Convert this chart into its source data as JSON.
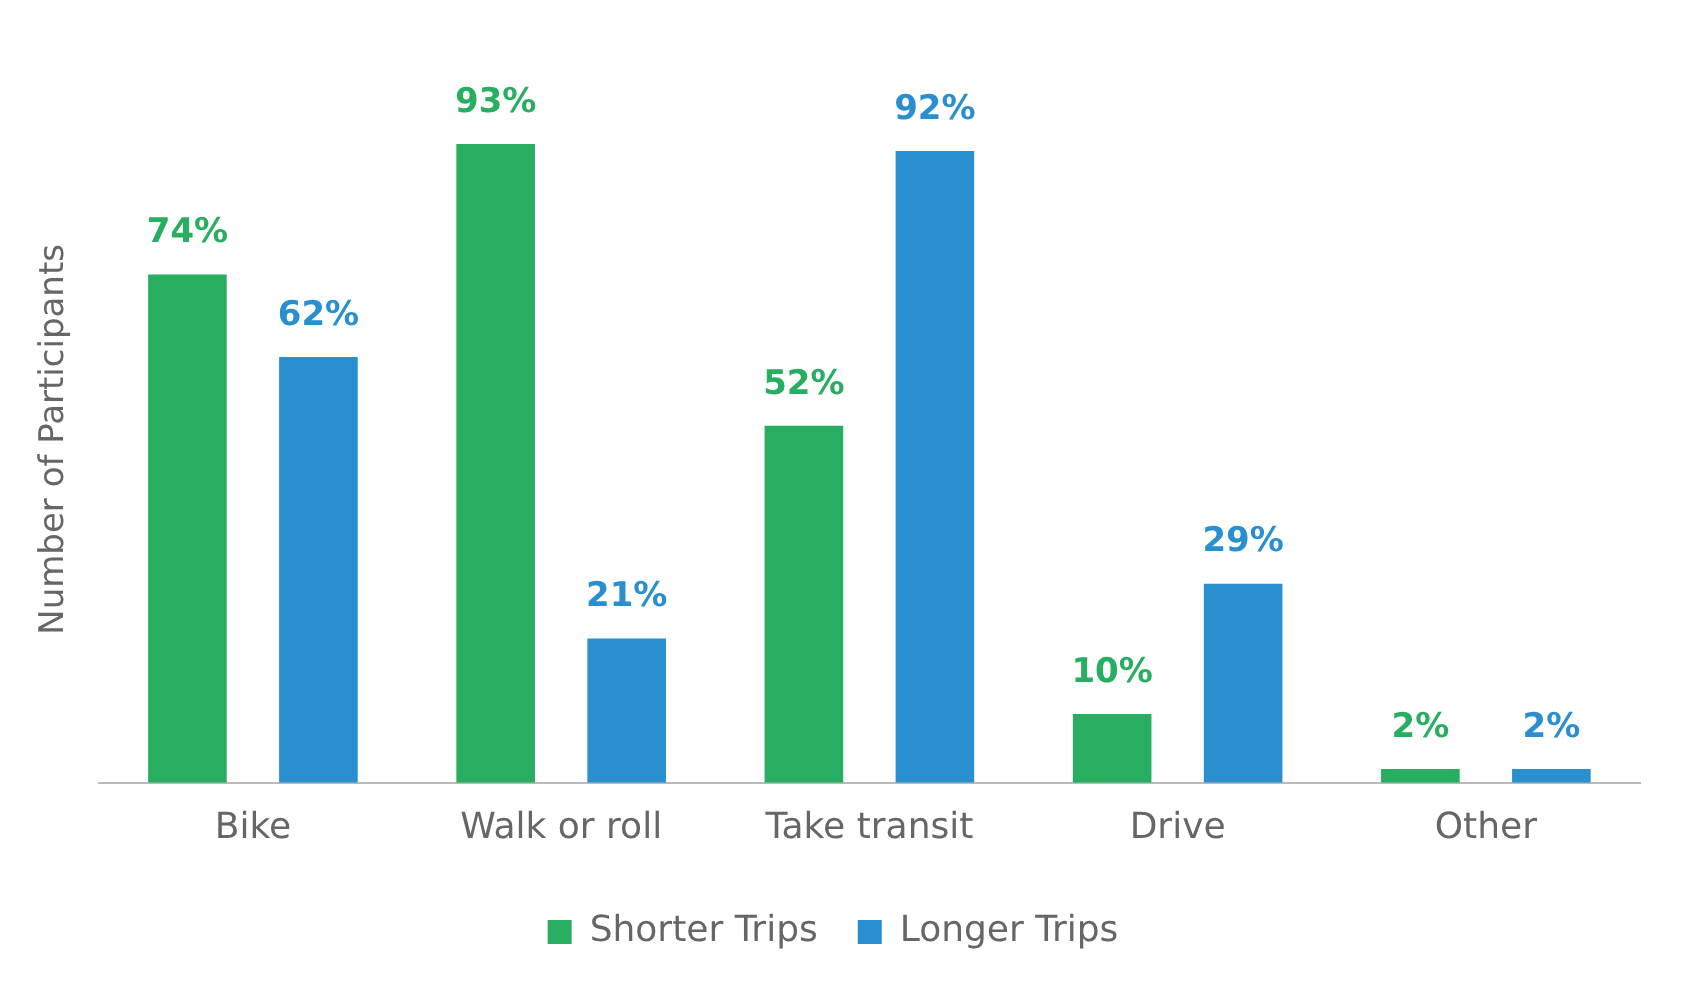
{
  "chart_data": {
    "type": "bar",
    "ylabel": "Number of Participants",
    "categories": [
      "Bike",
      "Walk or roll",
      "Take transit",
      "Drive",
      "Other"
    ],
    "series": [
      {
        "name": "Shorter Trips",
        "color": "#27ae60",
        "values": [
          74,
          93,
          52,
          10,
          2
        ],
        "value_labels": [
          "74%",
          "93%",
          "52%",
          "10%",
          "2%"
        ]
      },
      {
        "name": "Longer Trips",
        "color": "#2a8fcf",
        "values": [
          62,
          21,
          92,
          29,
          2
        ],
        "value_labels": [
          "62%",
          "21%",
          "92%",
          "29%",
          "2%"
        ]
      }
    ],
    "legend": "bottom",
    "grid": false
  }
}
